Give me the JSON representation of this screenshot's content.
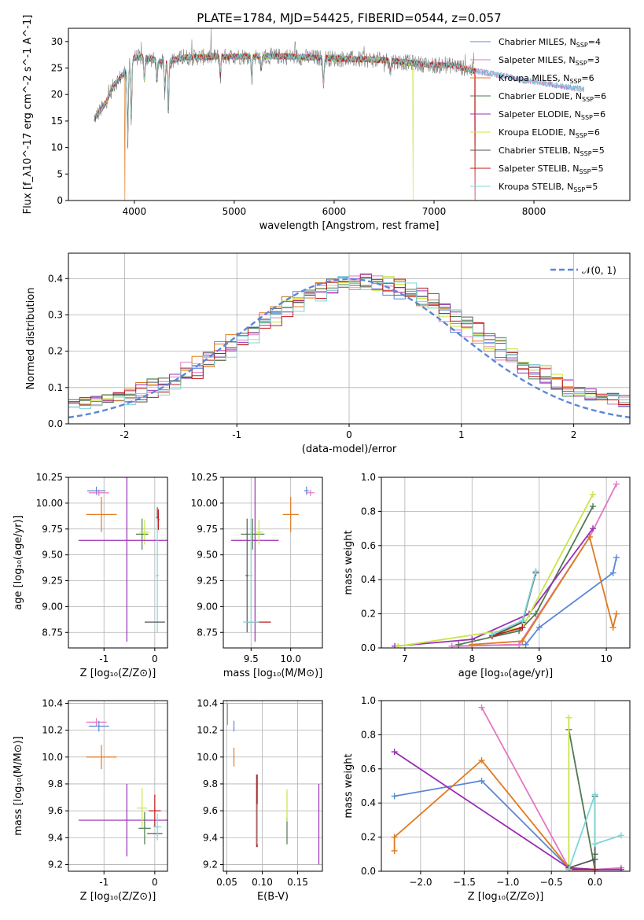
{
  "colors": {
    "chabrier_miles": "#5b87d9",
    "salpeter_miles": "#e377c2",
    "kroupa_miles": "#e07a1f",
    "chabrier_elodie": "#4f7a52",
    "salpeter_elodie": "#9b2fb5",
    "kroupa_elodie": "#c9e646",
    "chabrier_stelib": "#555555",
    "salpeter_stelib": "#c0181b",
    "kroupa_stelib": "#7fd6d6",
    "normal_curve": "#5b87d9",
    "data_spectrum": "#808080"
  },
  "chart_data": [
    {
      "id": "spectrum",
      "type": "line",
      "title": "PLATE=1784, MJD=54425, FIBERID=0544, z=0.057",
      "xlabel": "wavelength [Angstrom, rest frame]",
      "ylabel": "Flux [f_λ10^-17 erg cm^-2 s^-1 A^-1]",
      "xlim": [
        3340,
        8960
      ],
      "ylim": [
        0,
        32.5
      ],
      "xticks": [
        4000,
        5000,
        6000,
        7000,
        8000
      ],
      "yticks": [
        0,
        5,
        10,
        15,
        20,
        25,
        30
      ],
      "grid": false,
      "legend_position": "top-right",
      "legend": [
        {
          "label": "Chabrier MILES, N",
          "sub": "SSP",
          "suffix": "=4",
          "color_key": "chabrier_miles"
        },
        {
          "label": "Salpeter MILES, N",
          "sub": "SSP",
          "suffix": "=3",
          "color_key": "salpeter_miles"
        },
        {
          "label": "Kroupa MILES, N",
          "sub": "SSP",
          "suffix": "=6",
          "color_key": "kroupa_miles"
        },
        {
          "label": "Chabrier ELODIE, N",
          "sub": "SSP",
          "suffix": "=6",
          "color_key": "chabrier_elodie"
        },
        {
          "label": "Salpeter ELODIE, N",
          "sub": "SSP",
          "suffix": "=6",
          "color_key": "salpeter_elodie"
        },
        {
          "label": "Kroupa ELODIE, N",
          "sub": "SSP",
          "suffix": "=6",
          "color_key": "kroupa_elodie"
        },
        {
          "label": "Chabrier STELIB, N",
          "sub": "SSP",
          "suffix": "=5",
          "color_key": "chabrier_stelib"
        },
        {
          "label": "Salpeter STELIB, N",
          "sub": "SSP",
          "suffix": "=5",
          "color_key": "salpeter_stelib"
        },
        {
          "label": "Kroupa STELIB, N",
          "sub": "SSP",
          "suffix": "=5",
          "color_key": "kroupa_stelib"
        }
      ],
      "continuum": [
        [
          3600,
          15.5
        ],
        [
          3700,
          18
        ],
        [
          3800,
          22
        ],
        [
          3900,
          24
        ],
        [
          4000,
          27
        ],
        [
          4100,
          27
        ],
        [
          4300,
          26
        ],
        [
          4500,
          27
        ],
        [
          5000,
          27.2
        ],
        [
          5500,
          27.2
        ],
        [
          6000,
          26.8
        ],
        [
          6500,
          26.5
        ],
        [
          7000,
          25.5
        ],
        [
          7200,
          25.5
        ],
        [
          7400,
          24.5
        ],
        [
          7700,
          23.5
        ],
        [
          7900,
          22.6
        ],
        [
          8100,
          22.2
        ],
        [
          8300,
          21.5
        ],
        [
          8500,
          21
        ]
      ],
      "absorption_lines": [
        [
          3934,
          9.5
        ],
        [
          3969,
          14
        ],
        [
          4101,
          22
        ],
        [
          4227,
          22
        ],
        [
          4305,
          20
        ],
        [
          4340,
          16
        ],
        [
          4861,
          23
        ],
        [
          5175,
          22.5
        ],
        [
          5270,
          24.5
        ],
        [
          5893,
          21
        ],
        [
          6563,
          23.5
        ]
      ],
      "model_dropouts": [
        [
          3905,
          "kroupa_miles"
        ],
        [
          6790,
          "kroupa_elodie"
        ],
        [
          7410,
          "salpeter_stelib"
        ]
      ]
    },
    {
      "id": "residuals",
      "type": "histogram",
      "xlabel": "(data-model)/error",
      "ylabel": "Normed distribution",
      "xlim": [
        -2.5,
        2.5
      ],
      "ylim": [
        0,
        0.47
      ],
      "xticks": [
        -2,
        -1,
        0,
        1,
        2
      ],
      "yticks": [
        0.0,
        0.1,
        0.2,
        0.3,
        0.4
      ],
      "grid": true,
      "legend_position": "top-right",
      "normal_label": "𝒩(0, 1)",
      "bin_width": 0.1
    },
    {
      "id": "age-vs-Z",
      "type": "scatter",
      "xlabel": "Z [log₁₀(Z/Z⊙)]",
      "ylabel": "age  [log₁₀(age/yr)]",
      "xlim": [
        -1.7,
        0.25
      ],
      "ylim": [
        8.6,
        10.25
      ],
      "xticks": [
        -1,
        0
      ],
      "yticks": [
        8.75,
        9.0,
        9.25,
        9.5,
        9.75,
        10.0,
        10.25
      ],
      "grid": true,
      "points": [
        {
          "c": "chabrier_miles",
          "x": -1.15,
          "y": 10.12,
          "xe": 0.18,
          "ye": 0.04
        },
        {
          "c": "salpeter_miles",
          "x": -1.1,
          "y": 10.1,
          "xe": 0.2,
          "ye": 0.03
        },
        {
          "c": "kroupa_miles",
          "x": -1.05,
          "y": 9.89,
          "xe": 0.3,
          "ye": 0.17
        },
        {
          "c": "chabrier_elodie",
          "x": -0.25,
          "y": 9.7,
          "xe": 0.12,
          "ye": 0.15
        },
        {
          "c": "kroupa_elodie",
          "x": -0.2,
          "y": 9.72,
          "xe": 0.1,
          "ye": 0.12
        },
        {
          "c": "salpeter_elodie",
          "x": -0.55,
          "y": 9.64,
          "xe": 0.95,
          "ye": 0.98
        },
        {
          "c": "chabrier_stelib",
          "x": 0.05,
          "y": 9.86,
          "xe": 0.02,
          "ye": 0.1
        },
        {
          "c": "salpeter_stelib",
          "x": 0.07,
          "y": 9.84,
          "xe": 0.02,
          "ye": 0.1
        },
        {
          "c": "kroupa_stelib",
          "x": 0.05,
          "y": 9.3,
          "xe": 0.03,
          "ye": 0.55
        },
        {
          "c": "chabrier_stelib",
          "x": 0.0,
          "y": 8.85,
          "xe": 0.2,
          "ye": 0.0
        }
      ]
    },
    {
      "id": "age-vs-mass",
      "type": "scatter",
      "xlabel": "mass [log₁₀(M/M⊙)]",
      "ylabel": "",
      "xlim": [
        9.15,
        10.4
      ],
      "ylim": [
        8.6,
        10.25
      ],
      "xticks": [
        9.5,
        10.0
      ],
      "yticks": [
        8.75,
        9.0,
        9.25,
        9.5,
        9.75,
        10.0,
        10.25
      ],
      "grid": true,
      "points": [
        {
          "c": "chabrier_miles",
          "x": 10.2,
          "y": 10.12,
          "xe": 0.03,
          "ye": 0.04
        },
        {
          "c": "salpeter_miles",
          "x": 10.25,
          "y": 10.1,
          "xe": 0.05,
          "ye": 0.03
        },
        {
          "c": "kroupa_miles",
          "x": 10.0,
          "y": 9.89,
          "xe": 0.1,
          "ye": 0.17
        },
        {
          "c": "salpeter_elodie",
          "x": 9.55,
          "y": 9.64,
          "xe": 0.3,
          "ye": 0.98
        },
        {
          "c": "chabrier_elodie",
          "x": 9.52,
          "y": 9.7,
          "xe": 0.15,
          "ye": 0.15
        },
        {
          "c": "kroupa_elodie",
          "x": 9.6,
          "y": 9.72,
          "xe": 0.05,
          "ye": 0.12
        },
        {
          "c": "chabrier_stelib",
          "x": 9.45,
          "y": 9.3,
          "xe": 0.02,
          "ye": 0.55
        },
        {
          "c": "kroupa_stelib",
          "x": 9.5,
          "y": 9.3,
          "xe": 0.02,
          "ye": 0.55
        },
        {
          "c": "salpeter_stelib",
          "x": 9.6,
          "y": 8.85,
          "xe": 0.15,
          "ye": 0.0
        },
        {
          "c": "kroupa_stelib",
          "x": 9.5,
          "y": 8.85,
          "xe": 0.1,
          "ye": 0.0
        }
      ]
    },
    {
      "id": "weight-vs-age",
      "type": "line",
      "xlabel": "age  [log₁₀(age/yr)]",
      "ylabel": "mass weight",
      "xlim": [
        6.65,
        10.35
      ],
      "ylim": [
        0,
        1.0
      ],
      "xticks": [
        7,
        8,
        9,
        10
      ],
      "yticks": [
        0.0,
        0.2,
        0.4,
        0.6,
        0.8,
        1.0
      ],
      "grid": true,
      "series": [
        {
          "c": "chabrier_miles",
          "x": [
            7.7,
            8.8,
            9.0,
            10.1,
            10.15
          ],
          "y": [
            0.01,
            0.02,
            0.12,
            0.44,
            0.53
          ]
        },
        {
          "c": "salpeter_miles",
          "x": [
            7.7,
            8.7,
            9.75,
            10.15
          ],
          "y": [
            0.01,
            0.02,
            0.65,
            0.96
          ]
        },
        {
          "c": "kroupa_miles",
          "x": [
            8.0,
            8.75,
            9.75,
            10.1,
            10.15
          ],
          "y": [
            0.02,
            0.04,
            0.65,
            0.12,
            0.2
          ]
        },
        {
          "c": "chabrier_elodie",
          "x": [
            7.8,
            8.7,
            8.95,
            9.8
          ],
          "y": [
            0.02,
            0.1,
            0.2,
            0.83
          ]
        },
        {
          "c": "salpeter_elodie",
          "x": [
            6.85,
            8.0,
            8.85,
            9.8
          ],
          "y": [
            0.01,
            0.05,
            0.2,
            0.7
          ]
        },
        {
          "c": "kroupa_elodie",
          "x": [
            6.9,
            8.75,
            9.8
          ],
          "y": [
            0.01,
            0.12,
            0.9
          ]
        },
        {
          "c": "chabrier_stelib",
          "x": [
            8.3,
            8.75,
            8.95
          ],
          "y": [
            0.07,
            0.15,
            0.44
          ]
        },
        {
          "c": "salpeter_stelib",
          "x": [
            8.3,
            8.75
          ],
          "y": [
            0.07,
            0.12
          ]
        },
        {
          "c": "kroupa_stelib",
          "x": [
            8.3,
            8.75,
            8.95
          ],
          "y": [
            0.08,
            0.16,
            0.45
          ]
        }
      ]
    },
    {
      "id": "mass-vs-Z",
      "type": "scatter",
      "xlabel": "Z [log₁₀(Z/Z⊙)]",
      "ylabel": "mass [log₁₀(M/M⊙)]",
      "xlim": [
        -1.7,
        0.25
      ],
      "ylim": [
        9.15,
        10.42
      ],
      "xticks": [
        -1,
        0
      ],
      "yticks": [
        9.2,
        9.4,
        9.6,
        9.8,
        10.0,
        10.2,
        10.4
      ],
      "grid": true,
      "points": [
        {
          "c": "salpeter_miles",
          "x": -1.15,
          "y": 10.26,
          "xe": 0.2,
          "ye": 0.03
        },
        {
          "c": "chabrier_miles",
          "x": -1.1,
          "y": 10.23,
          "xe": 0.2,
          "ye": 0.04
        },
        {
          "c": "kroupa_miles",
          "x": -1.05,
          "y": 10.0,
          "xe": 0.3,
          "ye": 0.09
        },
        {
          "c": "salpeter_elodie",
          "x": -0.55,
          "y": 9.53,
          "xe": 0.95,
          "ye": 0.27
        },
        {
          "c": "kroupa_elodie",
          "x": -0.25,
          "y": 9.62,
          "xe": 0.1,
          "ye": 0.15
        },
        {
          "c": "chabrier_elodie",
          "x": -0.2,
          "y": 9.47,
          "xe": 0.12,
          "ye": 0.12
        },
        {
          "c": "chabrier_stelib",
          "x": 0.0,
          "y": 9.43,
          "xe": 0.15,
          "ye": 0.0
        },
        {
          "c": "salpeter_stelib",
          "x": 0.0,
          "y": 9.6,
          "xe": 0.12,
          "ye": 0.12
        },
        {
          "c": "kroupa_stelib",
          "x": 0.05,
          "y": 9.48,
          "xe": 0.08,
          "ye": 0.1
        }
      ]
    },
    {
      "id": "mass-vs-ebv",
      "type": "scatter",
      "xlabel": "E(B-V)",
      "ylabel": "",
      "xlim": [
        0.045,
        0.185
      ],
      "ylim": [
        9.15,
        10.42
      ],
      "xticks": [
        0.05,
        0.1,
        0.15
      ],
      "tick_labels": [
        "0.05",
        "0.10",
        "0.15"
      ],
      "yticks": [
        9.2,
        9.4,
        9.6,
        9.8,
        10.0,
        10.2,
        10.4
      ],
      "grid": true,
      "points": [
        {
          "c": "salpeter_miles",
          "x": 0.051,
          "y": 10.32,
          "xe": 0.0,
          "ye": 0.08
        },
        {
          "c": "chabrier_miles",
          "x": 0.06,
          "y": 10.23,
          "xe": 0.0,
          "ye": 0.04
        },
        {
          "c": "kroupa_miles",
          "x": 0.06,
          "y": 10.0,
          "xe": 0.0,
          "ye": 0.07
        },
        {
          "c": "salpeter_stelib",
          "x": 0.092,
          "y": 9.6,
          "xe": 0.0,
          "ye": 0.27
        },
        {
          "c": "chabrier_stelib",
          "x": 0.093,
          "y": 9.6,
          "xe": 0.0,
          "ye": 0.27
        },
        {
          "c": "kroupa_stelib",
          "x": 0.093,
          "y": 9.5,
          "xe": 0.0,
          "ye": 0.15
        },
        {
          "c": "chabrier_elodie",
          "x": 0.135,
          "y": 9.45,
          "xe": 0.0,
          "ye": 0.1
        },
        {
          "c": "kroupa_elodie",
          "x": 0.135,
          "y": 9.64,
          "xe": 0.0,
          "ye": 0.12
        },
        {
          "c": "salpeter_elodie",
          "x": 0.18,
          "y": 9.5,
          "xe": 0.0,
          "ye": 0.3
        }
      ]
    },
    {
      "id": "weight-vs-Z",
      "type": "line",
      "xlabel": "Z [log₁₀(Z/Z⊙)]",
      "ylabel": "mass weight",
      "xlim": [
        -2.45,
        0.4
      ],
      "ylim": [
        0,
        1.0
      ],
      "xticks": [
        -2.0,
        -1.5,
        -1.0,
        -0.5,
        0.0
      ],
      "tick_labels": [
        "−2.0",
        "−1.5",
        "−1.0",
        "−0.5",
        "0.0"
      ],
      "yticks": [
        0.0,
        0.2,
        0.4,
        0.6,
        0.8,
        1.0
      ],
      "grid": true,
      "series": [
        {
          "c": "chabrier_miles",
          "x": [
            -2.3,
            -1.3,
            -0.3,
            0.0,
            0.3
          ],
          "y": [
            0.44,
            0.53,
            0.02,
            0.01,
            0.01
          ]
        },
        {
          "c": "salpeter_miles",
          "x": [
            -1.3,
            -0.3,
            0.0,
            0.3
          ],
          "y": [
            0.96,
            0.02,
            0.01,
            0.02
          ]
        },
        {
          "c": "kroupa_miles",
          "x": [
            -2.3,
            -2.3,
            -1.3,
            -0.3,
            0.0
          ],
          "y": [
            0.12,
            0.2,
            0.65,
            0.02,
            0.01
          ]
        },
        {
          "c": "chabrier_elodie",
          "x": [
            -0.3,
            0.0,
            0.0
          ],
          "y": [
            0.83,
            0.01,
            0.1
          ]
        },
        {
          "c": "salpeter_elodie",
          "x": [
            -2.3,
            -0.3,
            0.0,
            0.3
          ],
          "y": [
            0.7,
            0.02,
            0.01,
            0.01
          ]
        },
        {
          "c": "kroupa_elodie",
          "x": [
            -0.3,
            -0.3
          ],
          "y": [
            0.9,
            0.02
          ]
        },
        {
          "c": "chabrier_stelib",
          "x": [
            0.0,
            0.0,
            -0.3
          ],
          "y": [
            0.44,
            0.07,
            0.02
          ]
        },
        {
          "c": "salpeter_stelib",
          "x": [
            -0.3,
            0.0
          ],
          "y": [
            0.01,
            0.01
          ]
        },
        {
          "c": "kroupa_stelib",
          "x": [
            -0.3,
            0.0,
            0.0,
            0.3
          ],
          "y": [
            0.01,
            0.45,
            0.16,
            0.21
          ]
        }
      ]
    }
  ]
}
